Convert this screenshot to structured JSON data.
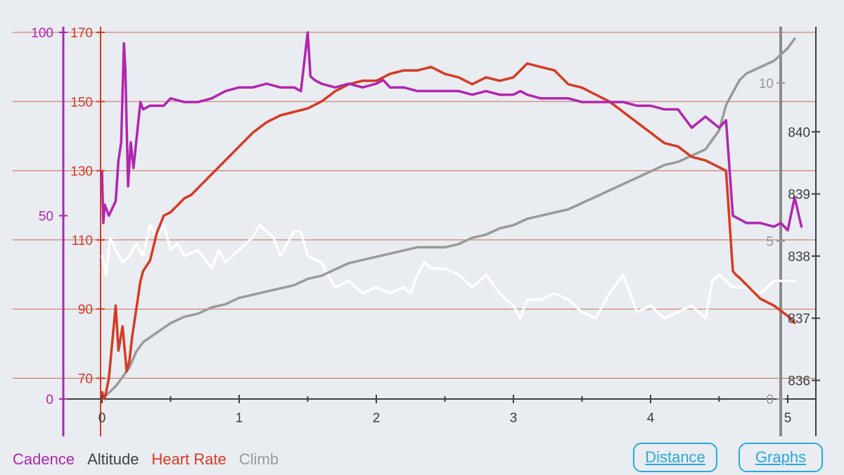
{
  "chart_data": {
    "type": "line",
    "title": "",
    "x_axis": {
      "ticks": [
        "0",
        "1",
        "2",
        "3",
        "4",
        "5"
      ],
      "range": [
        0,
        5
      ]
    },
    "y_axes": {
      "cadence": {
        "ticks": [
          "0",
          "50",
          "100"
        ],
        "range": [
          0,
          100
        ],
        "color": "#b026b0"
      },
      "heart_rate": {
        "ticks": [
          "70",
          "90",
          "110",
          "130",
          "150",
          "170"
        ],
        "range": [
          64,
          170
        ],
        "color": "#d63a24"
      },
      "altitude": {
        "ticks": [
          "836",
          "837",
          "838",
          "839",
          "840"
        ],
        "range": [
          835.7,
          841.6
        ],
        "color": "#3c3f44"
      },
      "climb": {
        "ticks": [
          "0",
          "5",
          "10"
        ],
        "range": [
          0,
          11.6
        ],
        "color": "#9a9a9a"
      }
    },
    "grid": "horizontal",
    "legend_position": "bottom-left",
    "series": [
      {
        "name": "Cadence",
        "axis": "cadence",
        "color": "#b026b0",
        "x": [
          0,
          0.01,
          0.02,
          0.05,
          0.1,
          0.12,
          0.14,
          0.16,
          0.17,
          0.19,
          0.21,
          0.23,
          0.28,
          0.3,
          0.35,
          0.45,
          0.5,
          0.6,
          0.7,
          0.8,
          0.9,
          1.0,
          1.1,
          1.2,
          1.3,
          1.4,
          1.45,
          1.5,
          1.52,
          1.55,
          1.6,
          1.7,
          1.8,
          1.9,
          2.0,
          2.05,
          2.1,
          2.2,
          2.3,
          2.4,
          2.5,
          2.6,
          2.7,
          2.8,
          2.9,
          3.0,
          3.05,
          3.1,
          3.2,
          3.3,
          3.4,
          3.5,
          3.6,
          3.7,
          3.8,
          3.9,
          4.0,
          4.1,
          4.2,
          4.3,
          4.4,
          4.5,
          4.55,
          4.6,
          4.65,
          4.7,
          4.8,
          4.9,
          4.95,
          5.0,
          5.05,
          5.1
        ],
        "y": [
          62,
          48,
          53,
          50,
          54,
          65,
          70,
          97,
          90,
          58,
          70,
          63,
          81,
          79,
          80,
          80,
          82,
          81,
          81,
          82,
          84,
          85,
          85,
          86,
          85,
          85,
          84,
          100,
          88,
          87,
          86,
          85,
          86,
          85,
          86,
          87,
          85,
          85,
          84,
          84,
          84,
          84,
          83,
          84,
          83,
          83,
          84,
          83,
          82,
          82,
          82,
          81,
          81,
          81,
          81,
          80,
          80,
          79,
          79,
          74,
          77,
          74,
          76,
          50,
          49,
          48,
          48,
          47,
          48,
          46,
          55,
          47
        ]
      },
      {
        "name": "Altitude",
        "axis": "altitude",
        "color": "#ffffff",
        "x": [
          0,
          0.03,
          0.06,
          0.1,
          0.15,
          0.2,
          0.25,
          0.3,
          0.35,
          0.4,
          0.45,
          0.5,
          0.55,
          0.6,
          0.7,
          0.8,
          0.85,
          0.9,
          1.0,
          1.1,
          1.15,
          1.2,
          1.25,
          1.3,
          1.4,
          1.45,
          1.5,
          1.6,
          1.7,
          1.8,
          1.9,
          2.0,
          2.1,
          2.2,
          2.25,
          2.3,
          2.35,
          2.4,
          2.5,
          2.6,
          2.7,
          2.8,
          2.9,
          3.0,
          3.05,
          3.1,
          3.2,
          3.3,
          3.4,
          3.5,
          3.6,
          3.7,
          3.8,
          3.9,
          4.0,
          4.1,
          4.2,
          4.3,
          4.4,
          4.45,
          4.5,
          4.6,
          4.7,
          4.8,
          4.9,
          5.0,
          5.05
        ],
        "y": [
          838.0,
          837.7,
          838.3,
          838.1,
          837.9,
          838.0,
          838.2,
          838.0,
          838.5,
          838.3,
          838.5,
          838.1,
          838.2,
          838.0,
          838.1,
          837.8,
          838.1,
          837.9,
          838.1,
          838.3,
          838.5,
          838.4,
          838.3,
          838.0,
          838.4,
          838.4,
          838.0,
          837.9,
          837.5,
          837.6,
          837.4,
          837.5,
          837.4,
          837.5,
          837.4,
          837.7,
          837.9,
          837.8,
          837.8,
          837.7,
          837.5,
          837.7,
          837.4,
          837.2,
          837.0,
          837.3,
          837.3,
          837.4,
          837.3,
          837.1,
          837.0,
          837.4,
          837.7,
          837.1,
          837.2,
          837.0,
          837.1,
          837.2,
          837.0,
          837.6,
          837.7,
          837.5,
          837.5,
          837.4,
          837.6,
          837.6,
          837.6
        ]
      },
      {
        "name": "Heart Rate",
        "axis": "heart_rate",
        "color": "#d63a24",
        "x": [
          0,
          0.02,
          0.05,
          0.1,
          0.12,
          0.15,
          0.18,
          0.2,
          0.22,
          0.25,
          0.28,
          0.3,
          0.35,
          0.4,
          0.45,
          0.5,
          0.55,
          0.6,
          0.65,
          0.7,
          0.75,
          0.8,
          0.85,
          0.9,
          0.95,
          1.0,
          1.05,
          1.1,
          1.2,
          1.3,
          1.4,
          1.5,
          1.6,
          1.7,
          1.8,
          1.9,
          2.0,
          2.1,
          2.2,
          2.3,
          2.4,
          2.5,
          2.6,
          2.7,
          2.8,
          2.9,
          3.0,
          3.05,
          3.1,
          3.2,
          3.3,
          3.4,
          3.5,
          3.6,
          3.7,
          3.8,
          3.9,
          4.0,
          4.1,
          4.2,
          4.3,
          4.4,
          4.5,
          4.55,
          4.6,
          4.62,
          4.65,
          4.7,
          4.8,
          4.9,
          5.0,
          5.05
        ],
        "y": [
          66,
          64,
          70,
          91,
          78,
          85,
          72,
          75,
          82,
          90,
          98,
          101,
          104,
          112,
          117,
          118,
          120,
          122,
          123,
          125,
          127,
          129,
          131,
          133,
          135,
          137,
          139,
          141,
          144,
          146,
          147,
          148,
          150,
          153,
          155,
          156,
          156,
          158,
          159,
          159,
          160,
          158,
          157,
          155,
          157,
          156,
          157,
          159,
          161,
          160,
          159,
          155,
          154,
          152,
          150,
          147,
          144,
          141,
          138,
          137,
          134,
          133,
          131,
          130,
          101,
          100,
          99,
          97,
          93,
          91,
          88,
          86
        ]
      },
      {
        "name": "Climb",
        "axis": "climb",
        "color": "#9a9a9a",
        "x": [
          0,
          0.05,
          0.1,
          0.15,
          0.2,
          0.25,
          0.3,
          0.4,
          0.5,
          0.6,
          0.7,
          0.8,
          0.9,
          1.0,
          1.1,
          1.2,
          1.3,
          1.4,
          1.5,
          1.6,
          1.7,
          1.8,
          1.9,
          2.0,
          2.1,
          2.2,
          2.3,
          2.4,
          2.5,
          2.6,
          2.7,
          2.8,
          2.9,
          3.0,
          3.1,
          3.2,
          3.3,
          3.4,
          3.5,
          3.6,
          3.7,
          3.8,
          3.9,
          4.0,
          4.1,
          4.2,
          4.3,
          4.4,
          4.45,
          4.5,
          4.55,
          4.6,
          4.65,
          4.7,
          4.8,
          4.9,
          5.0,
          5.05
        ],
        "y": [
          0,
          0.2,
          0.4,
          0.7,
          1.0,
          1.5,
          1.8,
          2.1,
          2.4,
          2.6,
          2.7,
          2.9,
          3.0,
          3.2,
          3.3,
          3.4,
          3.5,
          3.6,
          3.8,
          3.9,
          4.1,
          4.3,
          4.4,
          4.5,
          4.6,
          4.7,
          4.8,
          4.8,
          4.8,
          4.9,
          5.1,
          5.2,
          5.4,
          5.5,
          5.7,
          5.8,
          5.9,
          6.0,
          6.2,
          6.4,
          6.6,
          6.8,
          7.0,
          7.2,
          7.4,
          7.5,
          7.7,
          7.9,
          8.2,
          8.5,
          9.3,
          9.7,
          10.1,
          10.3,
          10.5,
          10.7,
          11.1,
          11.4
        ]
      }
    ]
  },
  "legend": [
    {
      "label": "Cadence",
      "color": "#b026b0"
    },
    {
      "label": "Altitude",
      "color": "#3c3f44"
    },
    {
      "label": "Heart Rate",
      "color": "#d63a24"
    },
    {
      "label": "Climb",
      "color": "#9a9a9a"
    }
  ],
  "buttons": {
    "distance": "Distance",
    "graphs": "Graphs"
  },
  "colors": {
    "background": "#e9ecf0",
    "grid": "#c96a5e",
    "axis": "#3c3f44",
    "button": "#29a8df"
  }
}
